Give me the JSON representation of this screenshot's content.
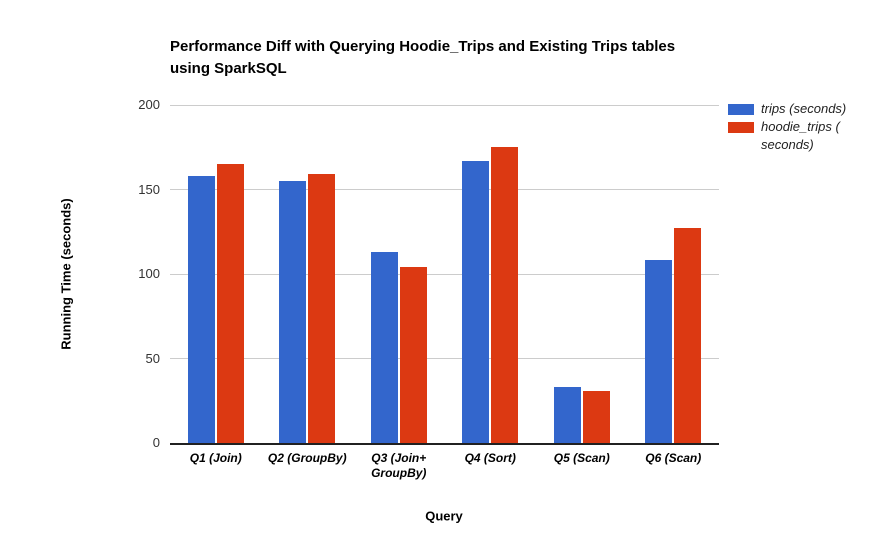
{
  "colors": {
    "series_trips": "#3366CC",
    "series_hoodie_trips": "#DC3912",
    "gridline": "#CCCCCC",
    "axis_line": "#212121",
    "title_text": "#000000",
    "tick_text": "#333333",
    "legend_text": "#222222"
  },
  "chart_data": {
    "type": "bar",
    "title": "Performance Diff with Querying Hoodie_Trips and Existing Trips tables using SparkSQL",
    "title_display": "Performance Diff with Querying Hoodie_Trips and Existing Trips tables\nusing SparkSQL",
    "xlabel": "Query",
    "ylabel": "Running Time (seconds)",
    "categories": [
      "Q1 (Join)",
      "Q2 (GroupBy)",
      "Q3 (Join+\nGroupBy)",
      "Q4 (Sort)",
      "Q5 (Scan)",
      "Q6 (Scan)"
    ],
    "series": [
      {
        "name": "trips (seconds)",
        "legend_label": "trips (seconds)",
        "color": "#3366CC",
        "values": [
          158,
          155,
          113,
          167,
          33,
          108
        ]
      },
      {
        "name": "hoodie_trips (seconds)",
        "legend_label": "hoodie_trips (\nseconds)",
        "color": "#DC3912",
        "values": [
          165,
          159,
          104,
          175,
          31,
          127
        ]
      }
    ],
    "ylim": [
      0,
      200
    ],
    "yticks": [
      0,
      50,
      100,
      150,
      200
    ],
    "grid": true,
    "legend_position": "right"
  }
}
